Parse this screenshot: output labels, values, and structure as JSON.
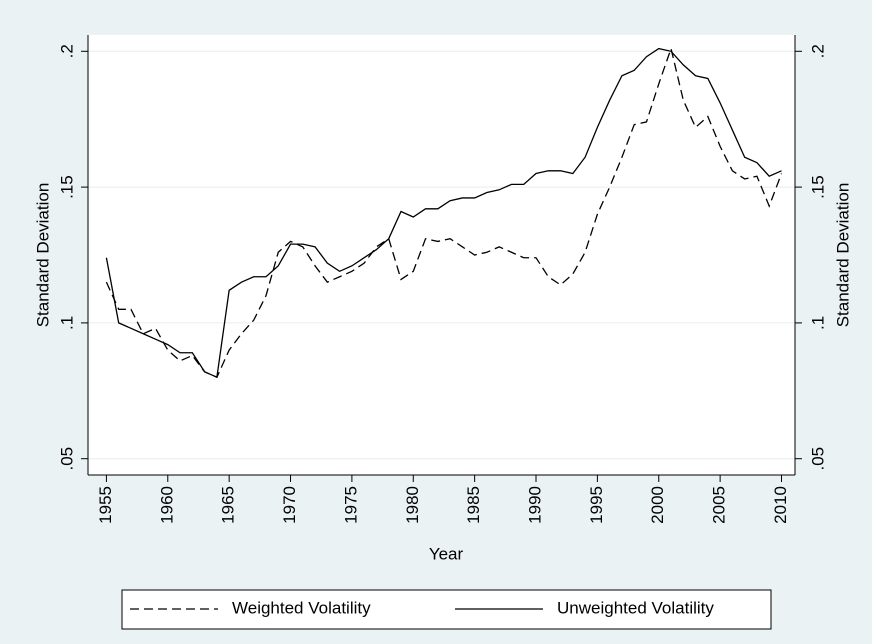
{
  "chart_data": {
    "type": "line",
    "x_label": "Year",
    "y_label": "Standard Deviation",
    "y2_label": "Standard Deviation",
    "x": [
      1955,
      1956,
      1957,
      1958,
      1959,
      1960,
      1961,
      1962,
      1963,
      1964,
      1965,
      1966,
      1967,
      1968,
      1969,
      1970,
      1971,
      1972,
      1973,
      1974,
      1975,
      1976,
      1977,
      1978,
      1979,
      1980,
      1981,
      1982,
      1983,
      1984,
      1985,
      1986,
      1987,
      1988,
      1989,
      1990,
      1991,
      1992,
      1993,
      1994,
      1995,
      1996,
      1997,
      1998,
      1999,
      2000,
      2001,
      2002,
      2003,
      2004,
      2005,
      2006,
      2007,
      2008,
      2009,
      2010
    ],
    "series": [
      {
        "name": "Weighted Volatility",
        "color": "#000000",
        "dashed": true,
        "values": [
          0.115,
          0.105,
          0.105,
          0.096,
          0.098,
          0.09,
          0.086,
          0.088,
          0.082,
          0.08,
          0.09,
          0.096,
          0.101,
          0.11,
          0.126,
          0.13,
          0.128,
          0.121,
          0.115,
          0.117,
          0.119,
          0.122,
          0.128,
          0.131,
          0.116,
          0.119,
          0.131,
          0.13,
          0.131,
          0.128,
          0.125,
          0.126,
          0.128,
          0.126,
          0.124,
          0.124,
          0.117,
          0.114,
          0.118,
          0.126,
          0.14,
          0.15,
          0.161,
          0.173,
          0.174,
          0.188,
          0.201,
          0.182,
          0.172,
          0.176,
          0.165,
          0.156,
          0.153,
          0.154,
          0.143,
          0.155
        ]
      },
      {
        "name": "Unweighted Volatility",
        "color": "#000000",
        "dashed": false,
        "values": [
          0.124,
          0.1,
          0.098,
          0.096,
          0.094,
          0.092,
          0.089,
          0.089,
          0.082,
          0.08,
          0.112,
          0.115,
          0.117,
          0.117,
          0.121,
          0.129,
          0.129,
          0.128,
          0.122,
          0.119,
          0.121,
          0.124,
          0.127,
          0.131,
          0.141,
          0.139,
          0.142,
          0.142,
          0.145,
          0.146,
          0.146,
          0.148,
          0.149,
          0.151,
          0.151,
          0.155,
          0.156,
          0.156,
          0.155,
          0.161,
          0.172,
          0.182,
          0.191,
          0.193,
          0.198,
          0.201,
          0.2,
          0.195,
          0.191,
          0.19,
          0.181,
          0.171,
          0.161,
          0.159,
          0.154,
          0.156
        ]
      }
    ],
    "xlim": [
      1953.5,
      2011.1
    ],
    "xticks": [
      1955,
      1960,
      1965,
      1970,
      1975,
      1980,
      1985,
      1990,
      1995,
      2000,
      2005,
      2010
    ],
    "ylim": [
      0.044,
      0.206
    ],
    "yticks": [
      {
        "value": 0.05,
        "label": ".05"
      },
      {
        "value": 0.1,
        "label": ".1"
      },
      {
        "value": 0.15,
        "label": ".15"
      },
      {
        "value": 0.2,
        "label": ".2"
      }
    ],
    "y2lim": [
      0.044,
      0.206
    ],
    "y2ticks": [
      {
        "value": 0.05,
        "label": ".05"
      },
      {
        "value": 0.1,
        "label": ".1"
      },
      {
        "value": 0.15,
        "label": ".15"
      },
      {
        "value": 0.2,
        "label": ".2"
      }
    ],
    "grid": true,
    "legend": "bottom"
  }
}
